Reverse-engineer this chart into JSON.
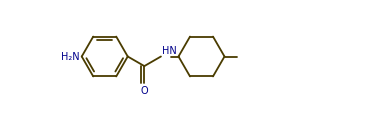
{
  "bg_color": "#ffffff",
  "line_color": "#4a3c00",
  "label_color": "#00008b",
  "line_width": 1.3,
  "figsize": [
    3.66,
    1.15
  ],
  "dpi": 100,
  "h2n_label": "H₂N",
  "hn_label": "HN",
  "o_label": "O",
  "font_size": 7.0,
  "xlim": [
    0.0,
    10.5
  ],
  "ylim": [
    -1.8,
    1.8
  ]
}
